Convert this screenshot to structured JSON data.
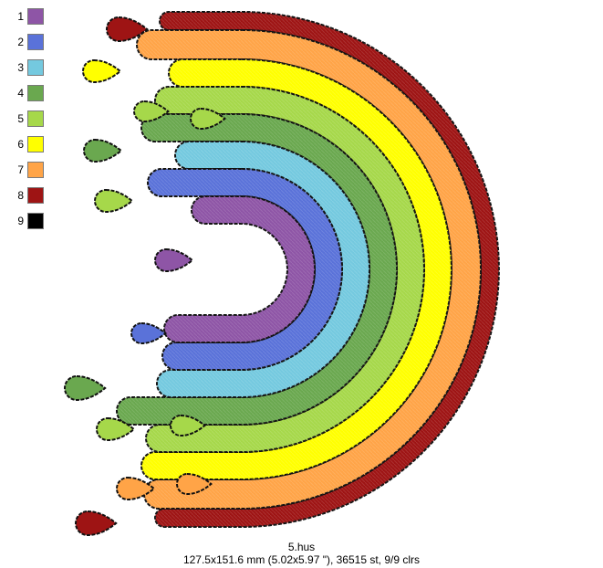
{
  "palette": [
    {
      "number": "1",
      "color": "#8e55a6"
    },
    {
      "number": "2",
      "color": "#5a72d9"
    },
    {
      "number": "3",
      "color": "#74c9df"
    },
    {
      "number": "4",
      "color": "#6aa84f"
    },
    {
      "number": "5",
      "color": "#a6d84a"
    },
    {
      "number": "6",
      "color": "#ffff00"
    },
    {
      "number": "7",
      "color": "#ffa447"
    },
    {
      "number": "8",
      "color": "#9e1414"
    },
    {
      "number": "9",
      "color": "#000000"
    }
  ],
  "footer": {
    "filename": "5.hus",
    "info": "127.5x151.6 mm (5.02x5.97 \"), 36515 st, 9/9 clrs"
  }
}
